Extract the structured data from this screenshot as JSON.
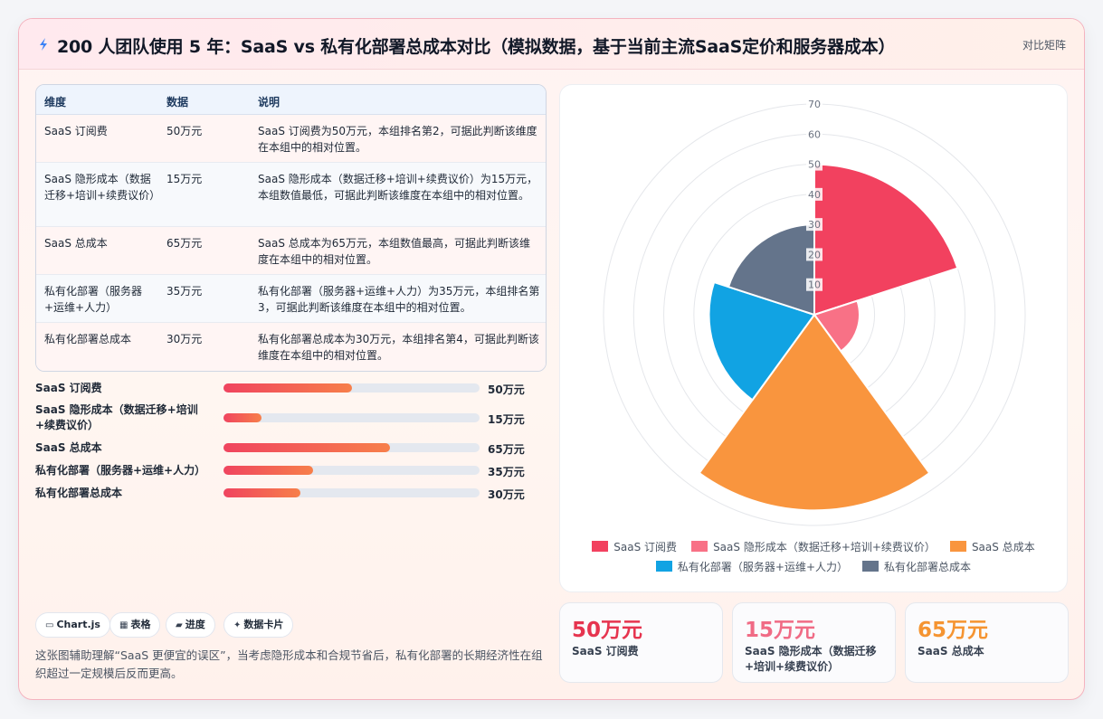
{
  "header": {
    "title": "200 人团队使用 5 年：SaaS vs 私有化部署总成本对比（模拟数据，基于当前主流SaaS定价和服务器成本）",
    "tag": "对比矩阵"
  },
  "table": {
    "headers": [
      "维度",
      "数据",
      "说明"
    ],
    "rows": [
      {
        "dim": "SaaS 订阅费",
        "value": "50万元",
        "note": "SaaS 订阅费为50万元，本组排名第2，可据此判断该维度在本组中的相对位置。"
      },
      {
        "dim": "SaaS 隐形成本（数据迁移+培训+续费议价）",
        "value": "15万元",
        "note": "SaaS 隐形成本（数据迁移+培训+续费议价）为15万元，本组数值最低，可据此判断该维度在本组中的相对位置。"
      },
      {
        "dim": "SaaS 总成本",
        "value": "65万元",
        "note": "SaaS 总成本为65万元，本组数值最高，可据此判断该维度在本组中的相对位置。"
      },
      {
        "dim": "私有化部署（服务器+运维+人力）",
        "value": "35万元",
        "note": "私有化部署（服务器+运维+人力）为35万元，本组排名第3，可据此判断该维度在本组中的相对位置。"
      },
      {
        "dim": "私有化部署总成本",
        "value": "30万元",
        "note": "私有化部署总成本为30万元，本组排名第4，可据此判断该维度在本组中的相对位置。"
      }
    ]
  },
  "bars": {
    "max": 100,
    "items": [
      {
        "label": "SaaS 订阅费",
        "value": 50,
        "value_text": "50万元"
      },
      {
        "label": "SaaS 隐形成本（数据迁移+培训+续费议价）",
        "value": 15,
        "value_text": "15万元"
      },
      {
        "label": "SaaS 总成本",
        "value": 65,
        "value_text": "65万元"
      },
      {
        "label": "私有化部署（服务器+运维+人力）",
        "value": 35,
        "value_text": "35万元"
      },
      {
        "label": "私有化部署总成本",
        "value": 30,
        "value_text": "30万元"
      }
    ]
  },
  "pills": [
    {
      "icon": "chart-icon",
      "glyph": "▭",
      "label": "Chart.js"
    },
    {
      "icon": "table-icon",
      "glyph": "▦",
      "label": "表格"
    },
    {
      "icon": "progress-icon",
      "glyph": "▰",
      "label": "进度"
    },
    {
      "icon": "sparkle-icon",
      "glyph": "✦",
      "label": "数据卡片"
    }
  ],
  "footnote": "这张图辅助理解“SaaS 更便宜的误区”，当考虑隐形成本和合规节省后，私有化部署的长期经济性在组织超过一定规模后反而更高。",
  "chart_data": {
    "type": "polarArea",
    "categories": [
      "SaaS 订阅费",
      "SaaS 隐形成本（数据迁移+培训+续费议价）",
      "SaaS 总成本",
      "私有化部署（服务器+运维+人力）",
      "私有化部署总成本"
    ],
    "values": [
      50,
      15,
      65,
      35,
      30
    ],
    "colors": [
      "#f2415f",
      "#f87186",
      "#f9953e",
      "#11a3e3",
      "#64748b"
    ],
    "r_max": 70,
    "r_ticks": [
      10,
      20,
      30,
      40,
      50,
      60,
      70
    ],
    "grid": true,
    "legend_position": "bottom"
  },
  "stats": [
    {
      "value": "50万元",
      "label": "SaaS 订阅费",
      "color": "#e6344f"
    },
    {
      "value": "15万元",
      "label": "SaaS 隐形成本（数据迁移+培训+续费议价）",
      "color": "#f06b85"
    },
    {
      "value": "65万元",
      "label": "SaaS 总成本",
      "color": "#f59431"
    }
  ]
}
